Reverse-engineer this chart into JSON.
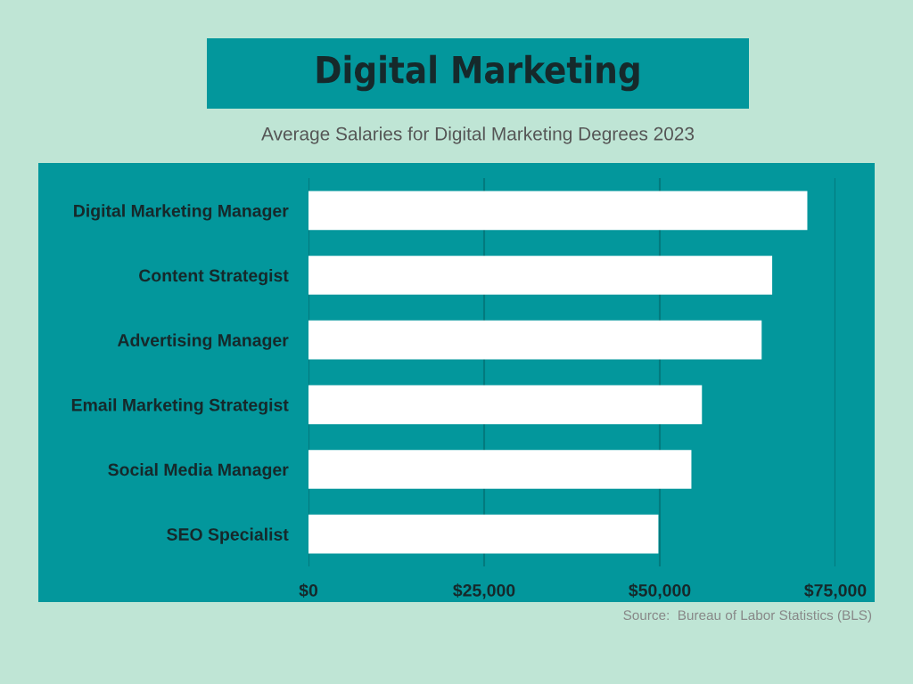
{
  "chart_data": {
    "type": "bar",
    "orientation": "horizontal",
    "title": "Digital Marketing",
    "subtitle": "Average Salaries for Digital Marketing Degrees 2023",
    "categories": [
      "Digital Marketing Manager",
      "Content Strategist",
      "Advertising Manager",
      "Email Marketing Strategist",
      "Social Media Manager",
      "SEO Specialist"
    ],
    "values": [
      71000,
      66000,
      64500,
      56000,
      54500,
      49800
    ],
    "color": "#ffffff",
    "xlim": [
      0,
      75000
    ],
    "xticks": [
      {
        "value": 0,
        "label": "$0"
      },
      {
        "value": 25000,
        "label": "$25,000"
      },
      {
        "value": 50000,
        "label": "$50,000"
      },
      {
        "value": 75000,
        "label": "$75,000"
      }
    ],
    "grid": "x",
    "legend": false,
    "annotations": [
      "Source:  Bureau of Labor Statistics (BLS)"
    ]
  }
}
